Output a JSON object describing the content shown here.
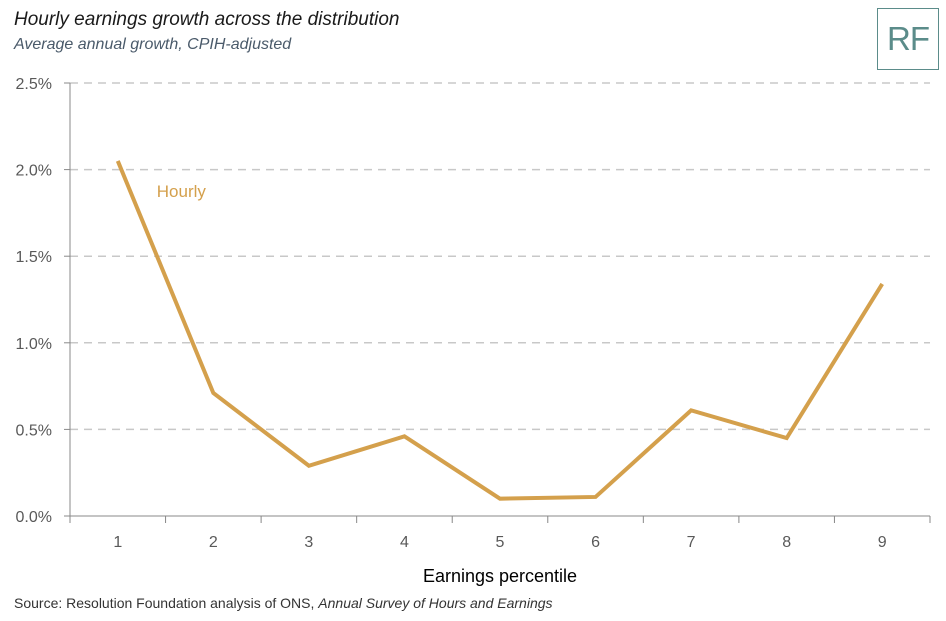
{
  "title": "Hourly earnings growth across the distribution",
  "subtitle": "Average annual growth, CPIH-adjusted",
  "logo_text": "RF",
  "source": {
    "prefix": "Source: Resolution Foundation analysis of ONS, ",
    "italic": "Annual Survey of Hours and Earnings"
  },
  "colors": {
    "series": "#d4a04c",
    "grid": "#c8c8c8",
    "axis": "#888888",
    "logo": "#5b8c8a"
  },
  "chart_data": {
    "type": "line",
    "title": "Hourly earnings growth across the distribution",
    "subtitle": "Average annual growth, CPIH-adjusted",
    "xlabel": "Earnings percentile",
    "ylabel": "",
    "categories": [
      "1",
      "2",
      "3",
      "4",
      "5",
      "6",
      "7",
      "8",
      "9"
    ],
    "x": [
      1,
      2,
      3,
      4,
      5,
      6,
      7,
      8,
      9
    ],
    "ylim": [
      0,
      2.5
    ],
    "yticks": [
      0,
      0.5,
      1.0,
      1.5,
      2.0,
      2.5
    ],
    "ytick_labels": [
      "0.0%",
      "0.5%",
      "1.0%",
      "1.5%",
      "2.0%",
      "2.5%"
    ],
    "grid": "horizontal dashed",
    "series": [
      {
        "name": "Hourly",
        "values": [
          2.05,
          0.71,
          0.29,
          0.46,
          0.1,
          0.11,
          0.61,
          0.45,
          1.34
        ]
      }
    ]
  }
}
